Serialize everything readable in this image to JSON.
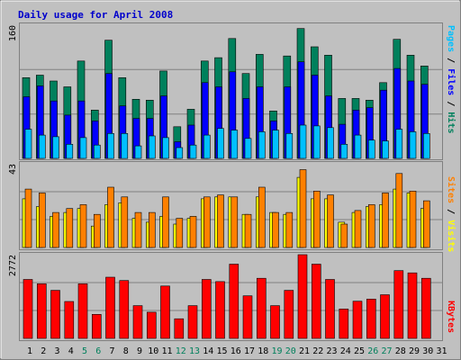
{
  "title": "Daily usage for April 2008",
  "colors": {
    "background": "#c0c0c0",
    "frame": "#808080",
    "panel_bg": "#c0c0c0",
    "title": "#0000cc",
    "hits": "#00805c",
    "files": "#0000ff",
    "pages": "#00c0ff",
    "visits": "#ffff00",
    "sites": "#ff8000",
    "kbytes": "#ff0000",
    "weekend_label": "#00805c",
    "weekday_label": "#000000"
  },
  "chart_data": [
    {
      "type": "bar",
      "name": "hits-files-pages",
      "ymax_label": "160",
      "ymax": 160,
      "legend": [
        "Pages",
        "Files",
        "Hits"
      ],
      "categories": [
        "1",
        "2",
        "3",
        "4",
        "5",
        "6",
        "7",
        "8",
        "9",
        "10",
        "11",
        "12",
        "13",
        "14",
        "15",
        "16",
        "17",
        "18",
        "19",
        "20",
        "21",
        "22",
        "23",
        "24",
        "25",
        "26",
        "27",
        "28",
        "29",
        "30",
        "31"
      ],
      "series": [
        {
          "name": "Hits",
          "color": "#00805c",
          "values": [
            97,
            100,
            93,
            86,
            117,
            58,
            142,
            97,
            71,
            70,
            105,
            38,
            59,
            117,
            121,
            144,
            102,
            125,
            57,
            123,
            156,
            134,
            124,
            72,
            72,
            70,
            91,
            143,
            124,
            111,
            0
          ]
        },
        {
          "name": "Files",
          "color": "#0000ff",
          "values": [
            74,
            87,
            69,
            52,
            69,
            45,
            102,
            63,
            48,
            48,
            75,
            20,
            40,
            91,
            86,
            104,
            72,
            86,
            45,
            86,
            116,
            100,
            75,
            41,
            58,
            61,
            82,
            108,
            93,
            89,
            0
          ]
        },
        {
          "name": "Pages",
          "color": "#00c0ff",
          "values": [
            35,
            28,
            26,
            17,
            25,
            16,
            30,
            30,
            15,
            27,
            25,
            13,
            16,
            28,
            36,
            34,
            24,
            32,
            34,
            30,
            40,
            39,
            37,
            17,
            28,
            22,
            21,
            35,
            32,
            30,
            0
          ]
        }
      ]
    },
    {
      "type": "bar",
      "name": "visits-sites",
      "ymax_label": "43",
      "ymax": 43,
      "legend": [
        "Sites",
        "Visits"
      ],
      "categories": [
        "1",
        "2",
        "3",
        "4",
        "5",
        "6",
        "7",
        "8",
        "9",
        "10",
        "11",
        "12",
        "13",
        "14",
        "15",
        "16",
        "17",
        "18",
        "19",
        "20",
        "21",
        "22",
        "23",
        "24",
        "25",
        "26",
        "27",
        "28",
        "29",
        "30",
        "31"
      ],
      "series": [
        {
          "name": "Visits",
          "color": "#ffff00",
          "values": [
            25,
            21,
            16,
            18,
            20,
            11,
            22,
            23,
            15,
            13,
            16,
            12,
            15,
            25,
            26,
            26,
            17,
            26,
            18,
            17,
            36,
            25,
            25,
            13,
            18,
            21,
            22,
            30,
            28,
            20,
            0
          ]
        },
        {
          "name": "Sites",
          "color": "#ff8000",
          "values": [
            30,
            28,
            18,
            20,
            22,
            17,
            31,
            26,
            18,
            18,
            26,
            15,
            16,
            26,
            27,
            26,
            17,
            31,
            18,
            18,
            40,
            29,
            27,
            12,
            19,
            22,
            28,
            38,
            29,
            24,
            0
          ]
        }
      ]
    },
    {
      "type": "bar",
      "name": "kbytes",
      "ymax_label": "2772",
      "ymax": 2772,
      "legend": [
        "KBytes"
      ],
      "categories": [
        "1",
        "2",
        "3",
        "4",
        "5",
        "6",
        "7",
        "8",
        "9",
        "10",
        "11",
        "12",
        "13",
        "14",
        "15",
        "16",
        "17",
        "18",
        "19",
        "20",
        "21",
        "22",
        "23",
        "24",
        "25",
        "26",
        "27",
        "28",
        "29",
        "30",
        "31"
      ],
      "series": [
        {
          "name": "KBytes",
          "color": "#ff0000",
          "values": [
            1953,
            1809,
            1592,
            1223,
            1809,
            796,
            2026,
            1918,
            1085,
            868,
            1736,
            651,
            1085,
            1953,
            1881,
            2460,
            1411,
            1990,
            1085,
            1592,
            2772,
            2460,
            1953,
            976,
            1230,
            1302,
            1447,
            2243,
            2171,
            1990,
            0
          ]
        }
      ]
    }
  ],
  "x_labels": [
    {
      "label": "1",
      "weekend": false
    },
    {
      "label": "2",
      "weekend": false
    },
    {
      "label": "3",
      "weekend": false
    },
    {
      "label": "4",
      "weekend": false
    },
    {
      "label": "5",
      "weekend": true
    },
    {
      "label": "6",
      "weekend": true
    },
    {
      "label": "7",
      "weekend": false
    },
    {
      "label": "8",
      "weekend": false
    },
    {
      "label": "9",
      "weekend": false
    },
    {
      "label": "10",
      "weekend": false
    },
    {
      "label": "11",
      "weekend": false
    },
    {
      "label": "12",
      "weekend": true
    },
    {
      "label": "13",
      "weekend": true
    },
    {
      "label": "14",
      "weekend": false
    },
    {
      "label": "15",
      "weekend": false
    },
    {
      "label": "16",
      "weekend": false
    },
    {
      "label": "17",
      "weekend": false
    },
    {
      "label": "18",
      "weekend": false
    },
    {
      "label": "19",
      "weekend": true
    },
    {
      "label": "20",
      "weekend": true
    },
    {
      "label": "21",
      "weekend": false
    },
    {
      "label": "22",
      "weekend": false
    },
    {
      "label": "23",
      "weekend": false
    },
    {
      "label": "24",
      "weekend": false
    },
    {
      "label": "25",
      "weekend": false
    },
    {
      "label": "26",
      "weekend": true
    },
    {
      "label": "27",
      "weekend": true
    },
    {
      "label": "28",
      "weekend": false
    },
    {
      "label": "29",
      "weekend": false
    },
    {
      "label": "30",
      "weekend": false
    },
    {
      "label": "31",
      "weekend": false
    }
  ],
  "side_labels": {
    "pages": "Pages",
    "files": "Files",
    "hits": "Hits",
    "sites": "Sites",
    "visits": "Visits",
    "kbytes": "KBytes",
    "sep": "/"
  }
}
